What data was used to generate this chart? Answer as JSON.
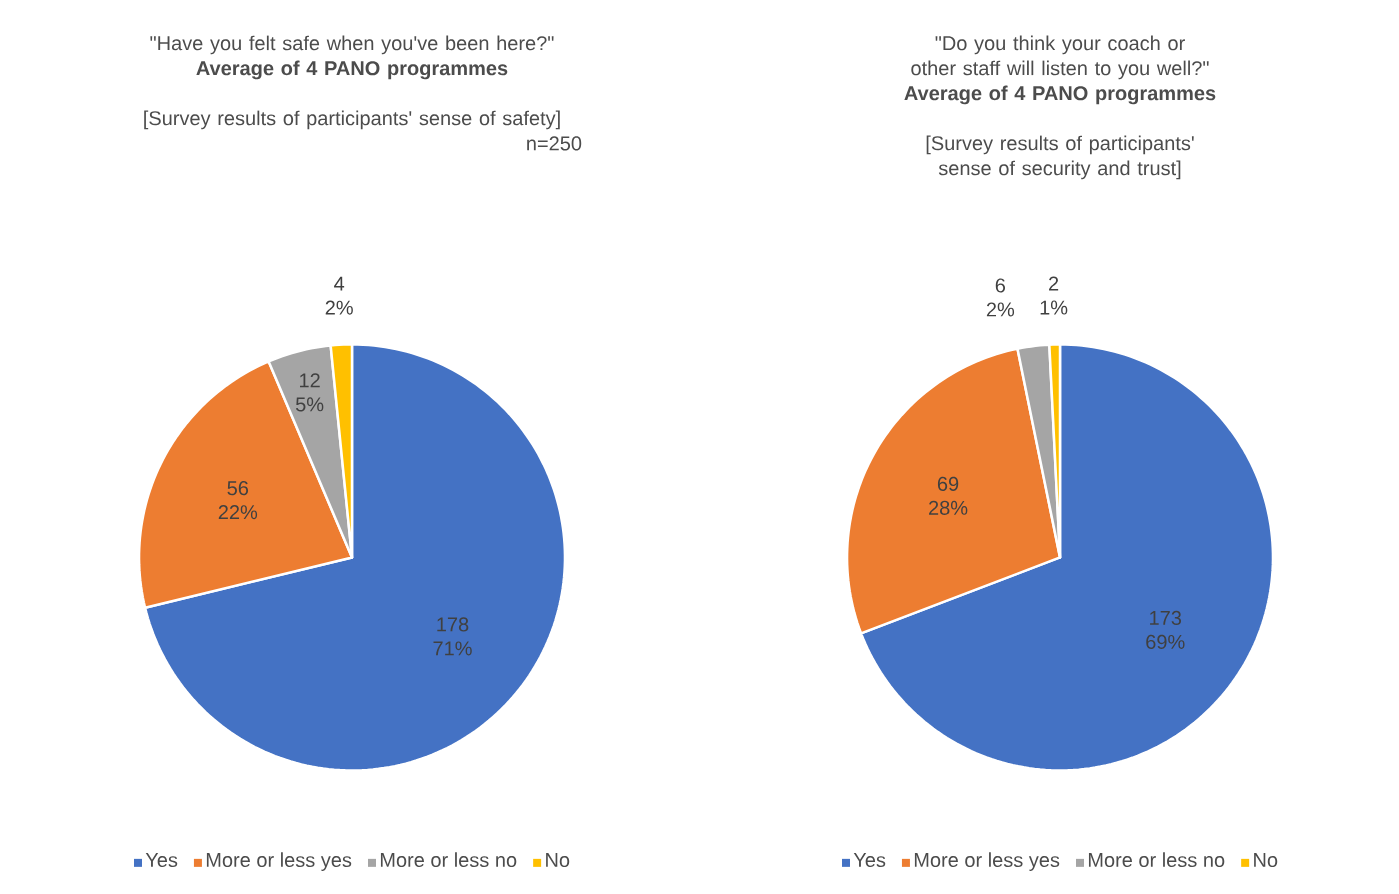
{
  "chart_data": [
    {
      "type": "pie",
      "title": "\"Have you felt safe when you've been here?\"",
      "subtitle": "Average of 4 PANO programmes",
      "annotations": [
        "[Survey results of participants' sense of safety]",
        "n=250"
      ],
      "categories": [
        "Yes",
        "More or less yes",
        "More or less no",
        "No"
      ],
      "values": [
        178,
        56,
        12,
        4
      ],
      "value_labels": [
        "178 71%",
        "56 22%",
        "12 5%",
        "4 2%"
      ],
      "colors": [
        "#4472c4",
        "#ed7d31",
        "#a5a5a5",
        "#ffc000"
      ],
      "legend": "bottom"
    },
    {
      "type": "pie",
      "title": "\"Do you think your coach or other staff will listen to you well?\"",
      "subtitle": "Average of 4 PANO programmes",
      "annotations": [
        "[Survey results of participants' sense of security and trust]"
      ],
      "categories": [
        "Yes",
        "More or less yes",
        "More or less no",
        "No"
      ],
      "values": [
        173,
        69,
        6,
        2
      ],
      "value_labels": [
        "173 69%",
        "69 28%",
        "6 2%",
        "2 1%"
      ],
      "colors": [
        "#4472c4",
        "#ed7d31",
        "#a5a5a5",
        "#ffc000"
      ],
      "legend": "bottom"
    }
  ]
}
